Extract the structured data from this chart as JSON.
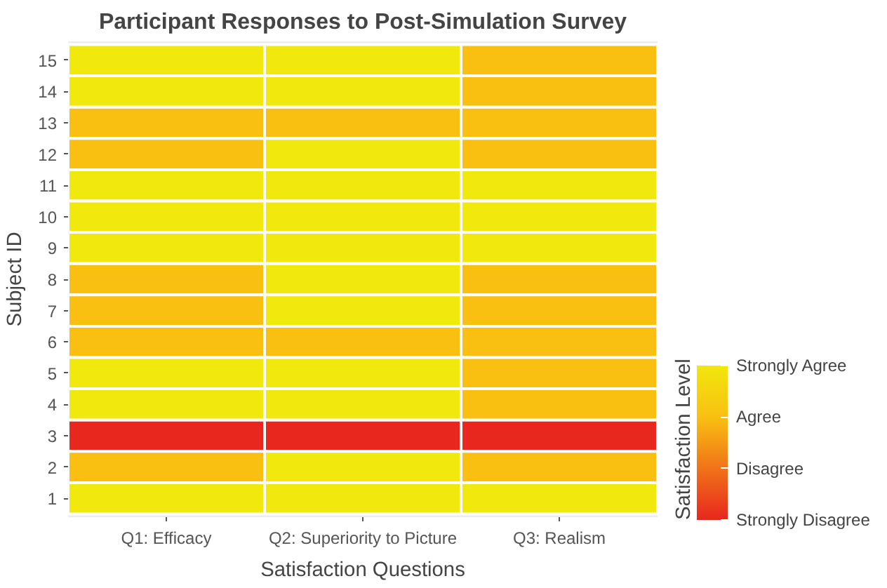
{
  "chart_data": {
    "type": "heatmap",
    "title": "Participant Responses to Post-Simulation Survey",
    "xlabel": "Satisfaction Questions",
    "ylabel": "Subject ID",
    "clabel": "Satisfaction Level",
    "categories": [
      "Q1: Efficacy",
      "Q2: Superiority to Picture",
      "Q3: Realism"
    ],
    "y_categories": [
      "15",
      "14",
      "13",
      "12",
      "11",
      "10",
      "9",
      "8",
      "7",
      "6",
      "5",
      "4",
      "3",
      "2",
      "1"
    ],
    "cells": [
      [
        4,
        4,
        3
      ],
      [
        4,
        4,
        3
      ],
      [
        3,
        3,
        3
      ],
      [
        3,
        4,
        3
      ],
      [
        4,
        4,
        4
      ],
      [
        4,
        4,
        4
      ],
      [
        4,
        4,
        4
      ],
      [
        3,
        4,
        3
      ],
      [
        3,
        4,
        3
      ],
      [
        3,
        3,
        3
      ],
      [
        4,
        4,
        3
      ],
      [
        4,
        4,
        3
      ],
      [
        1,
        1,
        1
      ],
      [
        3,
        4,
        3
      ],
      [
        4,
        4,
        4
      ]
    ],
    "clim": [
      1,
      4
    ],
    "cticks": [
      {
        "value": 1,
        "label": "Strongly Disagree"
      },
      {
        "value": 2,
        "label": "Disagree"
      },
      {
        "value": 3,
        "label": "Agree"
      },
      {
        "value": 4,
        "label": "Strongly Agree"
      }
    ]
  }
}
